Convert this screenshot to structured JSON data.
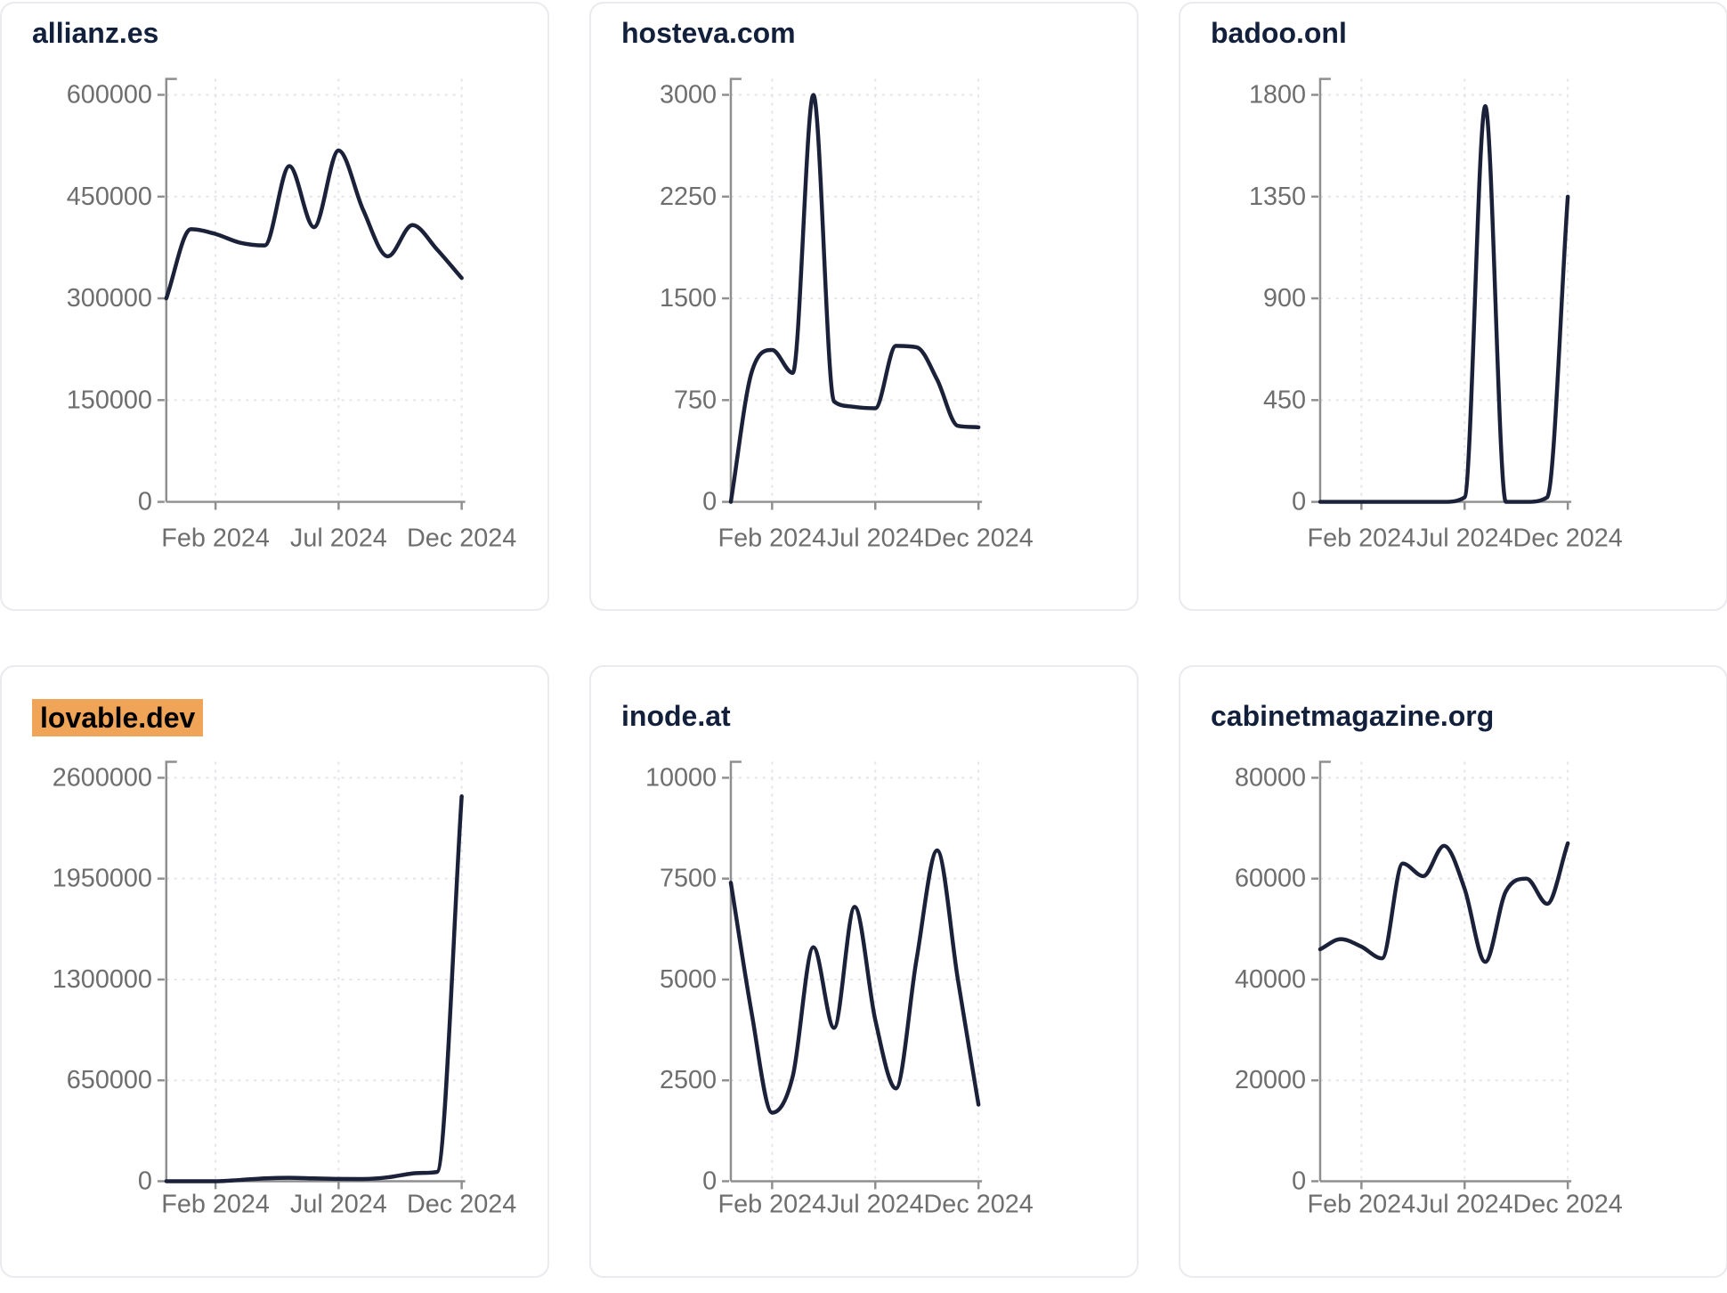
{
  "style": {
    "line_color": "#1b2139",
    "title_color": "#13203c",
    "highlight_color": "#f0a458",
    "axis_color": "#8f8f8f",
    "tick_label_color": "#6e6e6e",
    "grid_color": "#e4e4ea",
    "card_border_color": "#eaeaef",
    "background": "#ffffff"
  },
  "cards": [
    {
      "title": "allianz.es",
      "highlighted": false
    },
    {
      "title": "hosteva.com",
      "highlighted": false
    },
    {
      "title": "badoo.onl",
      "highlighted": false
    },
    {
      "title": "lovable.dev",
      "highlighted": true
    },
    {
      "title": "inode.at",
      "highlighted": false
    },
    {
      "title": "cabinetmagazine.org",
      "highlighted": false
    }
  ],
  "chart_data": [
    {
      "type": "line",
      "title": "allianz.es",
      "months": [
        "Dec 2023",
        "Jan 2024",
        "Feb 2024",
        "Mar 2024",
        "Apr 2024",
        "May 2024",
        "Jun 2024",
        "Jul 2024",
        "Aug 2024",
        "Sep 2024",
        "Oct 2024",
        "Nov 2024",
        "Dec 2024"
      ],
      "values": [
        300000,
        402000,
        395000,
        382000,
        378000,
        495000,
        405000,
        518000,
        430000,
        362000,
        408000,
        372000,
        330000
      ],
      "yticks": [
        0,
        150000,
        300000,
        450000,
        600000
      ],
      "ylim": [
        0,
        600000
      ],
      "x_tick_labels": [
        "Feb 2024",
        "Jul 2024",
        "Dec 2024"
      ],
      "x_tick_month_indices": [
        2,
        7,
        12
      ],
      "grid": true,
      "legend": "none"
    },
    {
      "type": "line",
      "title": "hosteva.com",
      "months": [
        "Dec 2023",
        "Jan 2024",
        "Feb 2024",
        "Mar 2024",
        "Apr 2024",
        "May 2024",
        "Jun 2024",
        "Jul 2024",
        "Aug 2024",
        "Sep 2024",
        "Oct 2024",
        "Nov 2024",
        "Dec 2024"
      ],
      "values": [
        0,
        950,
        1120,
        950,
        3000,
        740,
        700,
        690,
        1150,
        1140,
        900,
        560,
        550
      ],
      "yticks": [
        0,
        750,
        1500,
        2250,
        3000
      ],
      "ylim": [
        0,
        3000
      ],
      "x_tick_labels": [
        "Feb 2024",
        "Jul 2024",
        "Dec 2024"
      ],
      "x_tick_month_indices": [
        2,
        7,
        12
      ],
      "grid": true,
      "legend": "none"
    },
    {
      "type": "line",
      "title": "badoo.onl",
      "months": [
        "Dec 2023",
        "Jan 2024",
        "Feb 2024",
        "Mar 2024",
        "Apr 2024",
        "May 2024",
        "Jun 2024",
        "Jul 2024",
        "Aug 2024",
        "Sep 2024",
        "Oct 2024",
        "Nov 2024",
        "Dec 2024"
      ],
      "values": [
        0,
        0,
        0,
        0,
        0,
        0,
        0,
        20,
        1750,
        0,
        0,
        20,
        1350
      ],
      "yticks": [
        0,
        450,
        900,
        1350,
        1800
      ],
      "ylim": [
        0,
        1800
      ],
      "x_tick_labels": [
        "Feb 2024",
        "Jul 2024",
        "Dec 2024"
      ],
      "x_tick_month_indices": [
        2,
        7,
        12
      ],
      "grid": true,
      "legend": "none"
    },
    {
      "type": "line",
      "title": "lovable.dev",
      "months": [
        "Dec 2023",
        "Jan 2024",
        "Feb 2024",
        "Mar 2024",
        "Apr 2024",
        "May 2024",
        "Jun 2024",
        "Jul 2024",
        "Aug 2024",
        "Sep 2024",
        "Oct 2024",
        "Nov 2024",
        "Dec 2024"
      ],
      "values": [
        0,
        0,
        0,
        8000,
        18000,
        22000,
        18000,
        15000,
        14000,
        25000,
        50000,
        60000,
        2480000
      ],
      "yticks": [
        0,
        650000,
        1300000,
        1950000,
        2600000
      ],
      "ylim": [
        0,
        2600000
      ],
      "x_tick_labels": [
        "Feb 2024",
        "Jul 2024",
        "Dec 2024"
      ],
      "x_tick_month_indices": [
        2,
        7,
        12
      ],
      "grid": true,
      "legend": "none"
    },
    {
      "type": "line",
      "title": "inode.at",
      "months": [
        "Dec 2023",
        "Jan 2024",
        "Feb 2024",
        "Mar 2024",
        "Apr 2024",
        "May 2024",
        "Jun 2024",
        "Jul 2024",
        "Aug 2024",
        "Sep 2024",
        "Oct 2024",
        "Nov 2024",
        "Dec 2024"
      ],
      "values": [
        7400,
        4200,
        1700,
        2600,
        5800,
        3800,
        6800,
        4000,
        2300,
        5500,
        8200,
        5000,
        1900
      ],
      "yticks": [
        0,
        2500,
        5000,
        7500,
        10000
      ],
      "ylim": [
        0,
        10000
      ],
      "x_tick_labels": [
        "Feb 2024",
        "Jul 2024",
        "Dec 2024"
      ],
      "x_tick_month_indices": [
        2,
        7,
        12
      ],
      "grid": true,
      "legend": "none"
    },
    {
      "type": "line",
      "title": "cabinetmagazine.org",
      "months": [
        "Dec 2023",
        "Jan 2024",
        "Feb 2024",
        "Mar 2024",
        "Apr 2024",
        "May 2024",
        "Jun 2024",
        "Jul 2024",
        "Aug 2024",
        "Sep 2024",
        "Oct 2024",
        "Nov 2024",
        "Dec 2024"
      ],
      "values": [
        46000,
        48000,
        46500,
        44200,
        63000,
        60500,
        66500,
        58000,
        43500,
        57500,
        60000,
        55000,
        67000
      ],
      "yticks": [
        0,
        20000,
        40000,
        60000,
        80000
      ],
      "ylim": [
        0,
        80000
      ],
      "x_tick_labels": [
        "Feb 2024",
        "Jul 2024",
        "Dec 2024"
      ],
      "x_tick_month_indices": [
        2,
        7,
        12
      ],
      "grid": true,
      "legend": "none"
    }
  ]
}
